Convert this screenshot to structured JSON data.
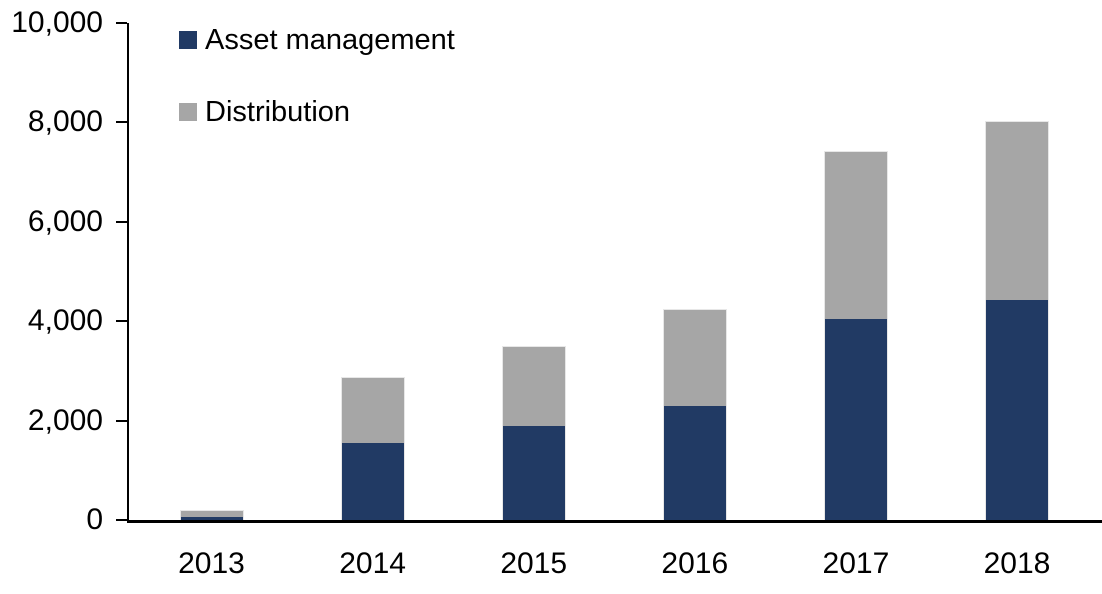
{
  "chart_data": {
    "type": "bar",
    "stacked": true,
    "title": "",
    "xlabel": "",
    "ylabel": "",
    "categories": [
      "2013",
      "2014",
      "2015",
      "2016",
      "2017",
      "2018"
    ],
    "series": [
      {
        "name": "Asset management",
        "color": "#213a64",
        "values": [
          75,
          1560,
          1900,
          2300,
          4050,
          4440
        ]
      },
      {
        "name": "Distribution",
        "color": "#a6a6a6",
        "values": [
          120,
          1310,
          1600,
          1950,
          3370,
          3580
        ]
      }
    ],
    "totals": [
      195,
      2870,
      3500,
      4250,
      7420,
      8020
    ],
    "ylim": [
      0,
      10000
    ],
    "ytick_interval": 2000,
    "ytick_labels": [
      "0",
      "2,000",
      "4,000",
      "6,000",
      "8,000",
      "10,000"
    ],
    "grid": false,
    "legend_position": "top-left",
    "axis_color": "#000000",
    "bar_border_color": "#e7e7e7"
  }
}
